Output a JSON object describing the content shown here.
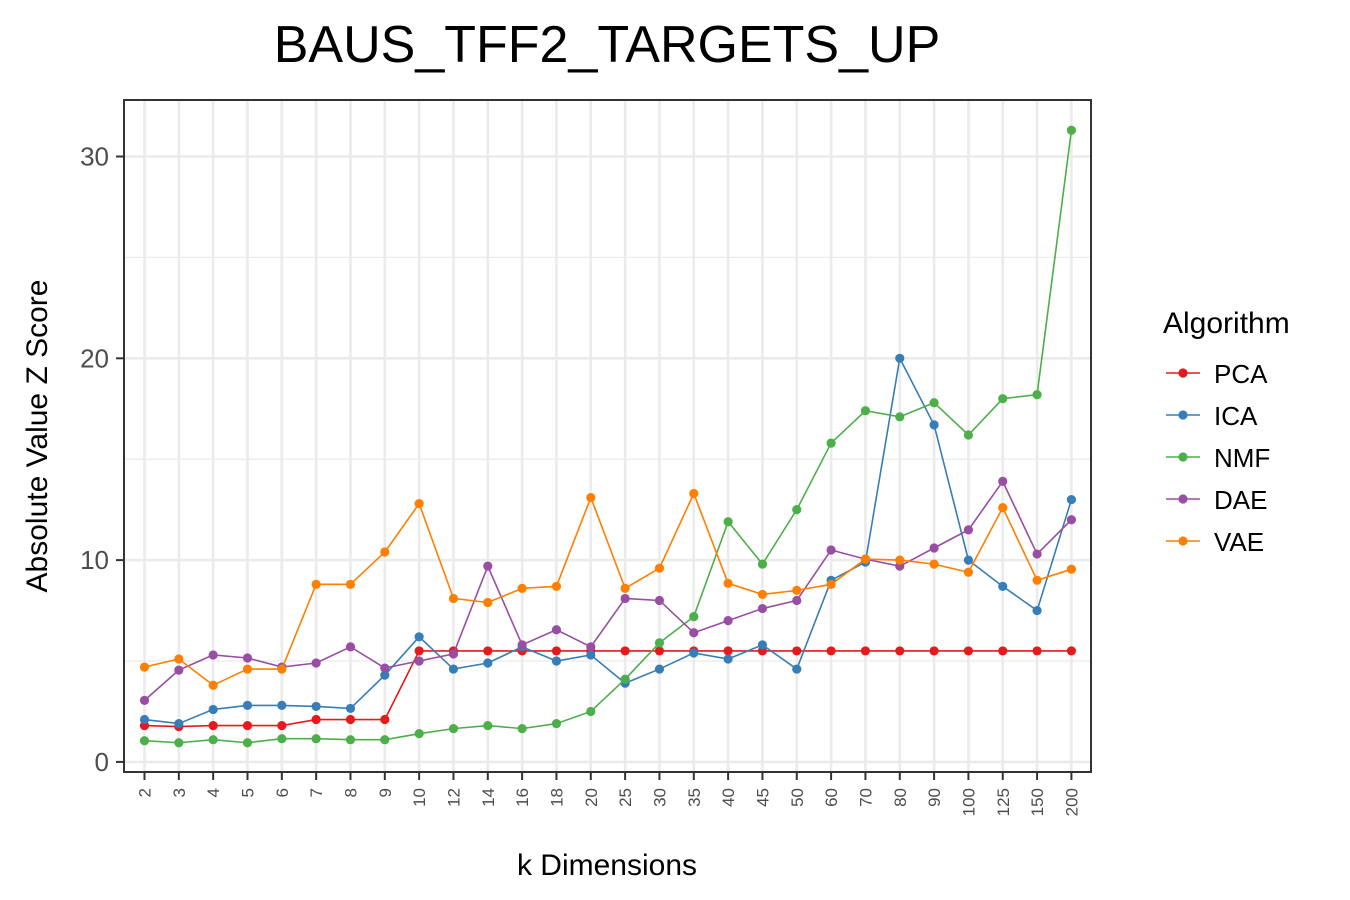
{
  "chart_data": {
    "type": "line",
    "title": "BAUS_TFF2_TARGETS_UP",
    "xlabel": "k Dimensions",
    "ylabel": "Absolute Value Z Score",
    "ylim": [
      -0.5,
      32.8
    ],
    "yticks": [
      "0",
      "10",
      "20",
      "30"
    ],
    "grid": true,
    "legend_title": "Algorithm",
    "legend_position": "right",
    "categories": [
      "2",
      "3",
      "4",
      "5",
      "6",
      "7",
      "8",
      "9",
      "10",
      "12",
      "14",
      "16",
      "18",
      "20",
      "25",
      "30",
      "35",
      "40",
      "45",
      "50",
      "60",
      "70",
      "80",
      "90",
      "100",
      "125",
      "150",
      "200"
    ],
    "series": [
      {
        "name": "PCA",
        "color": "#E41A1C",
        "values": [
          1.8,
          1.75,
          1.8,
          1.8,
          1.8,
          2.1,
          2.1,
          2.1,
          5.5,
          5.5,
          5.5,
          5.5,
          5.5,
          5.5,
          5.5,
          5.5,
          5.5,
          5.5,
          5.5,
          5.5,
          5.5,
          5.5,
          5.5,
          5.5,
          5.5,
          5.5,
          5.5,
          5.5
        ]
      },
      {
        "name": "ICA",
        "color": "#377EB8",
        "values": [
          2.1,
          1.9,
          2.6,
          2.8,
          2.8,
          2.75,
          2.65,
          4.3,
          6.2,
          4.6,
          4.9,
          5.7,
          5.0,
          5.3,
          3.9,
          4.6,
          5.4,
          5.1,
          5.8,
          4.6,
          9.0,
          9.9,
          20.0,
          16.7,
          10.0,
          8.7,
          7.5,
          13.0
        ]
      },
      {
        "name": "NMF",
        "color": "#4DAF4A",
        "values": [
          1.05,
          0.95,
          1.1,
          0.95,
          1.15,
          1.15,
          1.1,
          1.1,
          1.4,
          1.65,
          1.8,
          1.65,
          1.9,
          2.5,
          4.1,
          5.9,
          7.2,
          11.9,
          9.8,
          12.5,
          15.8,
          17.4,
          17.1,
          17.8,
          16.2,
          18.0,
          18.2,
          31.3
        ]
      },
      {
        "name": "DAE",
        "color": "#984EA3",
        "values": [
          3.05,
          4.55,
          5.3,
          5.15,
          4.7,
          4.9,
          5.7,
          4.65,
          5.0,
          5.35,
          9.7,
          5.8,
          6.55,
          5.7,
          8.1,
          8.0,
          6.4,
          7.0,
          7.6,
          8.0,
          10.5,
          10.05,
          9.7,
          10.6,
          11.5,
          13.9,
          10.3,
          12.0
        ]
      },
      {
        "name": "VAE",
        "color": "#FF7F00",
        "values": [
          4.7,
          5.1,
          3.8,
          4.6,
          4.6,
          8.8,
          8.8,
          10.4,
          12.8,
          8.1,
          7.9,
          8.6,
          8.7,
          13.1,
          8.6,
          9.6,
          13.3,
          8.85,
          8.3,
          8.5,
          8.8,
          10.05,
          10.0,
          9.8,
          9.4,
          12.6,
          9.0,
          9.55
        ]
      }
    ]
  }
}
